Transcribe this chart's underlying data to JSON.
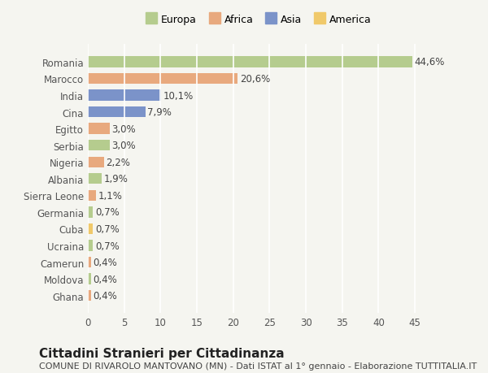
{
  "categories": [
    "Romania",
    "Marocco",
    "India",
    "Cina",
    "Egitto",
    "Serbia",
    "Nigeria",
    "Albania",
    "Sierra Leone",
    "Germania",
    "Cuba",
    "Ucraina",
    "Camerun",
    "Moldova",
    "Ghana"
  ],
  "values": [
    44.6,
    20.6,
    10.1,
    7.9,
    3.0,
    3.0,
    2.2,
    1.9,
    1.1,
    0.7,
    0.7,
    0.7,
    0.4,
    0.4,
    0.4
  ],
  "labels": [
    "44,6%",
    "20,6%",
    "10,1%",
    "7,9%",
    "3,0%",
    "3,0%",
    "2,2%",
    "1,9%",
    "1,1%",
    "0,7%",
    "0,7%",
    "0,7%",
    "0,4%",
    "0,4%",
    "0,4%"
  ],
  "continents": [
    "Europa",
    "Africa",
    "Asia",
    "Asia",
    "Africa",
    "Europa",
    "Africa",
    "Europa",
    "Africa",
    "Europa",
    "America",
    "Europa",
    "Africa",
    "Europa",
    "Africa"
  ],
  "continent_colors": {
    "Europa": "#b5cc8e",
    "Africa": "#e8a97e",
    "Asia": "#7b93c9",
    "America": "#f0c96a"
  },
  "legend_order": [
    "Europa",
    "Africa",
    "Asia",
    "America"
  ],
  "xlim": [
    0,
    47
  ],
  "xticks": [
    0,
    5,
    10,
    15,
    20,
    25,
    30,
    35,
    40,
    45
  ],
  "background_color": "#f5f5f0",
  "grid_color": "#ffffff",
  "title": "Cittadini Stranieri per Cittadinanza",
  "subtitle": "COMUNE DI RIVAROLO MANTOVANO (MN) - Dati ISTAT al 1° gennaio - Elaborazione TUTTITALIA.IT",
  "bar_height": 0.65,
  "label_fontsize": 8.5,
  "tick_fontsize": 8.5,
  "title_fontsize": 11,
  "subtitle_fontsize": 8
}
